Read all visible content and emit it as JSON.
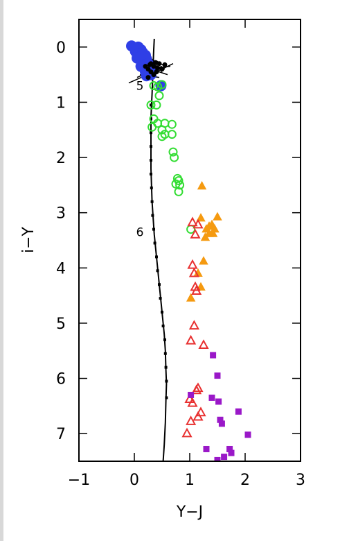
{
  "chart_data": {
    "type": "scatter",
    "title": "",
    "xlabel": "Y−J",
    "ylabel": "i−Y",
    "xlim": [
      -1,
      3
    ],
    "ylim": [
      7.5,
      -0.5
    ],
    "y_inverted": true,
    "x_ticks": [
      -1,
      0,
      1,
      2,
      3
    ],
    "x_tick_labels": [
      "−1",
      "0",
      "1",
      "2",
      "3"
    ],
    "y_ticks": [
      0,
      1,
      2,
      3,
      4,
      5,
      6,
      7
    ],
    "y_tick_labels": [
      "0",
      "1",
      "2",
      "3",
      "4",
      "5",
      "6",
      "7"
    ],
    "grid": false,
    "legend": "none",
    "track_labels": [
      {
        "text": "5",
        "x": 0.1,
        "y": 0.7
      },
      {
        "text": "6",
        "x": 0.1,
        "y": 3.35
      }
    ],
    "colors": {
      "blue_circles": "#2f3fe6",
      "green_circles": "#33dd33",
      "orange_triangles": "#f59a10",
      "red_triangles": "#e83030",
      "purple_squares": "#9a18c8",
      "model_track": "#000000",
      "axes": "#000000"
    },
    "model_track": [
      [
        0.36,
        -0.15
      ],
      [
        0.35,
        0.05
      ],
      [
        0.34,
        0.3
      ],
      [
        0.33,
        0.6
      ],
      [
        0.32,
        0.85
      ],
      [
        0.31,
        1.05
      ],
      [
        0.3,
        1.3
      ],
      [
        0.3,
        1.6
      ],
      [
        0.3,
        1.9
      ],
      [
        0.3,
        2.2
      ],
      [
        0.31,
        2.5
      ],
      [
        0.32,
        2.8
      ],
      [
        0.34,
        3.1
      ],
      [
        0.36,
        3.4
      ],
      [
        0.39,
        3.7
      ],
      [
        0.42,
        4.0
      ],
      [
        0.45,
        4.3
      ],
      [
        0.48,
        4.6
      ],
      [
        0.51,
        4.9
      ],
      [
        0.54,
        5.2
      ],
      [
        0.56,
        5.5
      ],
      [
        0.57,
        5.85
      ],
      [
        0.58,
        6.1
      ],
      [
        0.57,
        6.4
      ],
      [
        0.56,
        6.8
      ],
      [
        0.54,
        7.2
      ],
      [
        0.52,
        7.5
      ]
    ],
    "model_track_markers": [
      [
        0.3,
        1.05
      ],
      [
        0.3,
        1.3
      ],
      [
        0.3,
        1.55
      ],
      [
        0.3,
        1.8
      ],
      [
        0.3,
        2.05
      ],
      [
        0.3,
        2.3
      ],
      [
        0.31,
        2.55
      ],
      [
        0.32,
        2.8
      ],
      [
        0.33,
        3.05
      ],
      [
        0.35,
        3.3
      ],
      [
        0.37,
        3.55
      ],
      [
        0.4,
        3.8
      ],
      [
        0.42,
        4.05
      ],
      [
        0.45,
        4.3
      ],
      [
        0.47,
        4.55
      ],
      [
        0.5,
        4.8
      ],
      [
        0.52,
        5.05
      ],
      [
        0.55,
        5.3
      ],
      [
        0.56,
        5.55
      ],
      [
        0.57,
        5.8
      ],
      [
        0.58,
        6.05
      ],
      [
        0.58,
        6.35
      ]
    ],
    "black_scatter_lines": [
      [
        [
          0.4,
          0.25
        ],
        [
          0.45,
          0.3
        ]
      ],
      [
        [
          0.15,
          0.45
        ],
        [
          0.5,
          0.35
        ]
      ],
      [
        [
          0.1,
          0.5
        ],
        [
          0.45,
          0.55
        ]
      ],
      [
        [
          0.2,
          0.55
        ],
        [
          0.7,
          0.3
        ]
      ],
      [
        [
          -0.1,
          0.65
        ],
        [
          0.35,
          0.45
        ]
      ],
      [
        [
          0.25,
          0.3
        ],
        [
          0.55,
          0.4
        ]
      ],
      [
        [
          0.15,
          0.35
        ],
        [
          0.6,
          0.5
        ]
      ],
      [
        [
          0.2,
          0.4
        ],
        [
          0.65,
          0.35
        ]
      ],
      [
        [
          0.3,
          0.2
        ],
        [
          0.5,
          0.45
        ]
      ],
      [
        [
          0.1,
          0.4
        ],
        [
          0.4,
          0.3
        ]
      ],
      [
        [
          0.4,
          0.25
        ],
        [
          0.55,
          0.35
        ]
      ],
      [
        [
          0.05,
          0.55
        ],
        [
          0.4,
          0.4
        ]
      ]
    ],
    "series": [
      {
        "marker": "filled-circle",
        "color_key": "blue_circles",
        "points": [
          [
            -0.05,
            -0.02
          ],
          [
            0.0,
            0.02
          ],
          [
            0.07,
            0.0
          ],
          [
            0.12,
            0.05
          ],
          [
            0.02,
            0.08
          ],
          [
            0.08,
            0.12
          ],
          [
            0.15,
            0.1
          ],
          [
            0.1,
            0.18
          ],
          [
            0.2,
            0.15
          ],
          [
            0.05,
            0.2
          ],
          [
            0.14,
            0.25
          ],
          [
            0.22,
            0.22
          ],
          [
            0.18,
            0.32
          ],
          [
            0.25,
            0.3
          ],
          [
            0.12,
            0.35
          ],
          [
            0.28,
            0.4
          ],
          [
            0.2,
            0.45
          ],
          [
            0.3,
            0.5
          ],
          [
            0.22,
            0.52
          ],
          [
            0.48,
            0.7
          ]
        ]
      },
      {
        "marker": "black-dot",
        "color_key": "model_track",
        "points": [
          [
            0.3,
            0.3
          ],
          [
            0.35,
            0.35
          ],
          [
            0.25,
            0.4
          ],
          [
            0.4,
            0.45
          ],
          [
            0.3,
            0.45
          ],
          [
            0.45,
            0.3
          ],
          [
            0.5,
            0.4
          ],
          [
            0.2,
            0.35
          ],
          [
            0.35,
            0.5
          ],
          [
            0.25,
            0.55
          ],
          [
            0.42,
            0.38
          ],
          [
            0.55,
            0.32
          ],
          [
            0.28,
            0.32
          ],
          [
            0.38,
            0.28
          ]
        ]
      },
      {
        "marker": "open-circle",
        "color_key": "green_circles",
        "points": [
          [
            0.35,
            0.7
          ],
          [
            0.42,
            0.72
          ],
          [
            0.5,
            0.68
          ],
          [
            0.45,
            0.88
          ],
          [
            0.3,
            1.05
          ],
          [
            0.4,
            1.05
          ],
          [
            0.35,
            1.3
          ],
          [
            0.42,
            1.38
          ],
          [
            0.55,
            1.38
          ],
          [
            0.68,
            1.4
          ],
          [
            0.32,
            1.45
          ],
          [
            0.5,
            1.5
          ],
          [
            0.55,
            1.58
          ],
          [
            0.5,
            1.62
          ],
          [
            0.68,
            1.58
          ],
          [
            0.7,
            1.9
          ],
          [
            0.72,
            2.0
          ],
          [
            0.78,
            2.38
          ],
          [
            0.8,
            2.42
          ],
          [
            0.75,
            2.48
          ],
          [
            0.82,
            2.5
          ],
          [
            0.8,
            2.62
          ],
          [
            1.02,
            3.3
          ]
        ]
      },
      {
        "marker": "filled-triangle",
        "color_key": "orange_triangles",
        "points": [
          [
            1.22,
            2.52
          ],
          [
            1.2,
            3.1
          ],
          [
            1.3,
            3.3
          ],
          [
            1.35,
            3.38
          ],
          [
            1.4,
            3.22
          ],
          [
            1.28,
            3.45
          ],
          [
            1.45,
            3.3
          ],
          [
            1.42,
            3.38
          ],
          [
            1.5,
            3.08
          ],
          [
            1.35,
            3.25
          ],
          [
            1.25,
            3.88
          ],
          [
            1.2,
            4.35
          ],
          [
            1.02,
            4.55
          ],
          [
            1.15,
            4.1
          ]
        ]
      },
      {
        "marker": "open-triangle",
        "color_key": "red_triangles",
        "points": [
          [
            1.05,
            3.18
          ],
          [
            1.15,
            3.22
          ],
          [
            1.1,
            3.4
          ],
          [
            1.05,
            3.95
          ],
          [
            1.08,
            4.1
          ],
          [
            1.1,
            4.35
          ],
          [
            1.12,
            4.42
          ],
          [
            1.08,
            5.05
          ],
          [
            1.02,
            5.32
          ],
          [
            1.25,
            5.4
          ],
          [
            1.15,
            6.18
          ],
          [
            1.12,
            6.22
          ],
          [
            1.0,
            6.38
          ],
          [
            1.05,
            6.45
          ],
          [
            1.2,
            6.62
          ],
          [
            1.15,
            6.7
          ],
          [
            1.02,
            6.78
          ],
          [
            0.95,
            7.0
          ]
        ]
      },
      {
        "marker": "filled-square",
        "color_key": "purple_squares",
        "points": [
          [
            1.42,
            5.58
          ],
          [
            1.5,
            5.95
          ],
          [
            1.02,
            6.3
          ],
          [
            1.4,
            6.35
          ],
          [
            1.52,
            6.42
          ],
          [
            1.88,
            6.6
          ],
          [
            1.55,
            6.75
          ],
          [
            1.58,
            6.82
          ],
          [
            2.05,
            7.02
          ],
          [
            1.3,
            7.28
          ],
          [
            1.72,
            7.28
          ],
          [
            1.75,
            7.35
          ],
          [
            1.62,
            7.42
          ],
          [
            1.5,
            7.48
          ]
        ]
      }
    ]
  }
}
